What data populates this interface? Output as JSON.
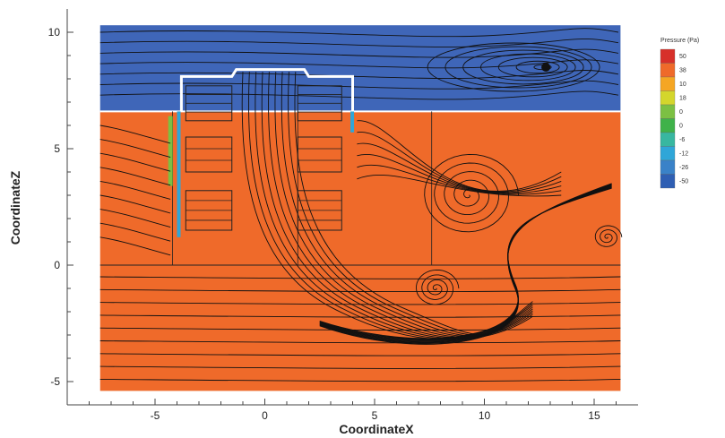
{
  "chart_data": {
    "type": "heatmap",
    "title": "",
    "xlabel": "CoordinateX",
    "ylabel": "CoordinateZ",
    "xlim": [
      -9,
      17
    ],
    "ylim": [
      -6,
      11
    ],
    "domain": {
      "x": [
        -7.5,
        16.2
      ],
      "z": [
        -5.4,
        10.3
      ]
    },
    "x_ticks": [
      "-5",
      "0",
      "5",
      "10",
      "15"
    ],
    "y_ticks": [
      "-5",
      "0",
      "5",
      "10"
    ],
    "legend": {
      "title": "Pressure (Pa)",
      "placement": "right",
      "entries": [
        {
          "label": "50",
          "color": "#d7302a"
        },
        {
          "label": "38",
          "color": "#ef6a2a"
        },
        {
          "label": "10",
          "color": "#f5a623"
        },
        {
          "label": "18",
          "color": "#d4d62c"
        },
        {
          "label": "0",
          "color": "#7cc043"
        },
        {
          "label": "0",
          "color": "#3fb24a"
        },
        {
          "label": "-6",
          "color": "#38b7a0"
        },
        {
          "label": "-12",
          "color": "#2fa6d8"
        },
        {
          "label": "-26",
          "color": "#3a82c8"
        },
        {
          "label": "-50",
          "color": "#2f5fb3"
        }
      ]
    },
    "regions": [
      {
        "name": "upper-low-pressure",
        "color": "#3f66b8",
        "z_range": [
          6.6,
          10.3
        ]
      },
      {
        "name": "lower-high-pressure",
        "color": "#ef6a2a",
        "z_range": [
          -5.4,
          6.6
        ]
      }
    ],
    "vortices": [
      {
        "x": 9.3,
        "z": 3.0
      },
      {
        "x": 7.8,
        "z": -1.0
      },
      {
        "x": 12.8,
        "z": 8.5
      },
      {
        "x": 15.6,
        "z": 1.2
      }
    ],
    "building": {
      "x": [
        -3.8,
        4.0
      ],
      "roof_z": 8.5,
      "base_z": 1.0
    }
  }
}
